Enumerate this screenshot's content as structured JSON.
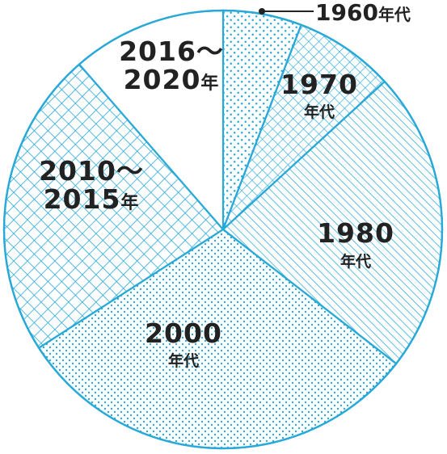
{
  "colors": {
    "stroke": "#29a9d8",
    "text": "#222222",
    "background": "#ffffff"
  },
  "chart_data": {
    "type": "pie",
    "start_angle_deg": 0,
    "direction": "clockwise",
    "slices": [
      {
        "label": "1960年代",
        "value": 5.8,
        "pattern": "dots-sparse"
      },
      {
        "label": "1970年代",
        "value": 7.4,
        "pattern": "crosshatch-fine"
      },
      {
        "label": "1980年代",
        "value": 22.3,
        "pattern": "diagonal"
      },
      {
        "label": "2000年代",
        "value": 30.4,
        "pattern": "dots-dense"
      },
      {
        "label": "2010〜2015年",
        "value": 22.7,
        "pattern": "crosshatch"
      },
      {
        "label": "2016〜2020年",
        "value": 11.4,
        "pattern": "none"
      }
    ],
    "labels": {
      "s1960": {
        "num": "1960",
        "unit": "年代"
      },
      "s1970": {
        "num": "1970",
        "unit": "年代"
      },
      "s1980": {
        "num": "1980",
        "unit": "年代"
      },
      "s2000": {
        "num": "2000",
        "unit": "年代"
      },
      "s2010": {
        "line1": "2010〜",
        "line2_num": "2015",
        "line2_unit": "年"
      },
      "s2016": {
        "line1": "2016〜",
        "line2_num": "2020",
        "line2_unit": "年"
      }
    }
  }
}
